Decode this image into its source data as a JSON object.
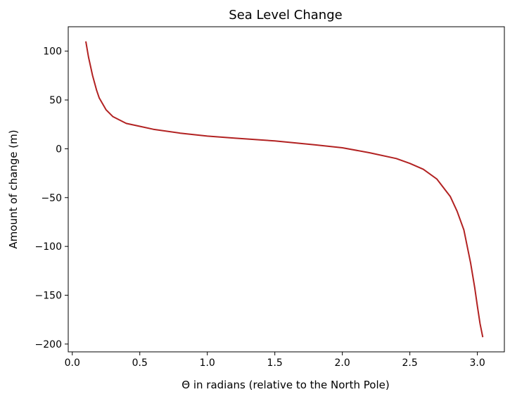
{
  "chart_data": {
    "type": "line",
    "title": "Sea Level Change",
    "xlabel": "Θ in radians (relative to the North Pole)",
    "ylabel": "Amount of change (m)",
    "xlim": [
      -0.03,
      3.2
    ],
    "ylim": [
      -208,
      125
    ],
    "x_ticks": [
      0.0,
      0.5,
      1.0,
      1.5,
      2.0,
      2.5,
      3.0
    ],
    "x_tick_labels": [
      "0.0",
      "0.5",
      "1.0",
      "1.5",
      "2.0",
      "2.5",
      "3.0"
    ],
    "y_ticks": [
      100,
      50,
      0,
      -50,
      -100,
      -150,
      -200
    ],
    "y_tick_labels": [
      "100",
      "50",
      "0",
      "−50",
      "−100",
      "−150",
      "−200"
    ],
    "grid": false,
    "series": [
      {
        "color": "#b22222",
        "x": [
          0.1,
          0.12,
          0.15,
          0.18,
          0.2,
          0.25,
          0.3,
          0.4,
          0.5,
          0.6,
          0.8,
          1.0,
          1.2,
          1.5,
          1.8,
          2.0,
          2.2,
          2.4,
          2.5,
          2.6,
          2.7,
          2.8,
          2.85,
          2.9,
          2.95,
          2.98,
          3.0,
          3.02,
          3.04
        ],
        "y": [
          110,
          94,
          75,
          60,
          52,
          40,
          33,
          26,
          23,
          20,
          16,
          13,
          11,
          8,
          4,
          1,
          -4,
          -10,
          -15,
          -21,
          -31,
          -49,
          -64,
          -83,
          -117,
          -142,
          -161,
          -179,
          -193
        ]
      }
    ]
  }
}
